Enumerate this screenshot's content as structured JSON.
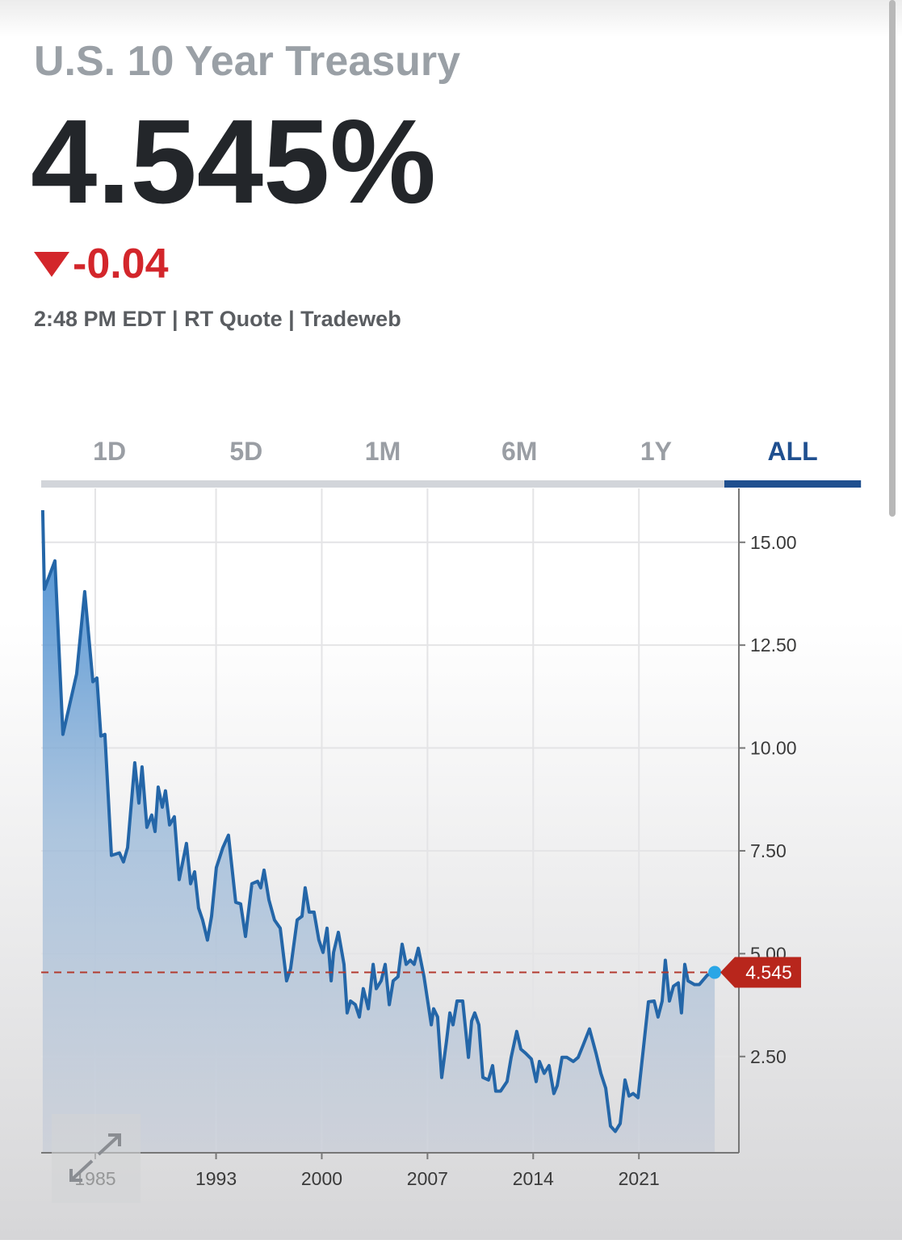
{
  "header": {
    "title": "U.S. 10 Year Treasury",
    "price": "4.545%",
    "change": "-0.04",
    "meta": "2:48 PM EDT | RT Quote | Tradeweb"
  },
  "tabs": [
    "1D",
    "5D",
    "1M",
    "6M",
    "1Y",
    "ALL"
  ],
  "active_tab": 5,
  "chart_data": {
    "type": "area",
    "color": "#2466a8",
    "x": [
      1981.52,
      1981.63,
      1982.33,
      1982.86,
      1983.77,
      1984.3,
      1984.84,
      1985.11,
      1985.37,
      1985.64,
      1986.07,
      1986.6,
      1986.87,
      1987.14,
      1987.62,
      1987.89,
      1988.1,
      1988.42,
      1988.74,
      1988.96,
      1989.17,
      1989.44,
      1989.65,
      1989.92,
      1990.24,
      1990.56,
      1991.04,
      1991.31,
      1991.58,
      1991.84,
      1992.11,
      1992.43,
      1992.7,
      1993.02,
      1993.45,
      1993.82,
      1994.3,
      1994.63,
      1994.95,
      1995.37,
      1995.75,
      1995.96,
      1996.18,
      1996.5,
      1996.87,
      1997.25,
      1997.67,
      1997.94,
      1998.37,
      1998.69,
      1998.9,
      1999.17,
      1999.49,
      1999.81,
      2000.08,
      2000.35,
      2000.62,
      2000.78,
      2001.1,
      2001.47,
      2001.68,
      2001.9,
      2002.22,
      2002.49,
      2002.75,
      2003.08,
      2003.4,
      2003.61,
      2003.93,
      2004.2,
      2004.47,
      2004.73,
      2005.05,
      2005.32,
      2005.59,
      2005.86,
      2006.12,
      2006.39,
      2006.77,
      2007.25,
      2007.41,
      2007.67,
      2007.94,
      2008.26,
      2008.48,
      2008.69,
      2008.96,
      2009.33,
      2009.71,
      2009.92,
      2010.13,
      2010.4,
      2010.67,
      2011.04,
      2011.31,
      2011.52,
      2011.84,
      2012.27,
      2012.54,
      2012.91,
      2013.18,
      2013.5,
      2013.88,
      2014.2,
      2014.41,
      2014.73,
      2015.05,
      2015.37,
      2015.59,
      2015.91,
      2016.23,
      2016.66,
      2016.98,
      2017.3,
      2017.73,
      2018.16,
      2018.48,
      2018.8,
      2019.12,
      2019.44,
      2019.76,
      2020.08,
      2020.35,
      2020.62,
      2020.94,
      2021.26,
      2021.63,
      2022.01,
      2022.27,
      2022.54,
      2022.75,
      2023.02,
      2023.29,
      2023.61,
      2023.82,
      2024.04,
      2024.25,
      2024.68,
      2025.0,
      2025.53,
      2026.02
    ],
    "values": [
      15.78,
      13.86,
      14.55,
      10.33,
      11.8,
      13.8,
      11.61,
      11.7,
      10.29,
      10.33,
      7.39,
      7.45,
      7.23,
      7.58,
      9.64,
      8.66,
      9.54,
      8.07,
      8.37,
      7.97,
      9.05,
      8.56,
      8.96,
      8.13,
      8.33,
      6.8,
      7.68,
      6.7,
      6.99,
      6.11,
      5.82,
      5.33,
      5.91,
      7.09,
      7.58,
      7.88,
      6.25,
      6.21,
      5.42,
      6.7,
      6.76,
      6.6,
      7.03,
      6.31,
      5.82,
      5.62,
      4.34,
      4.64,
      5.82,
      5.91,
      6.6,
      6.01,
      6.01,
      5.33,
      5.03,
      5.62,
      4.34,
      5.03,
      5.52,
      4.74,
      3.56,
      3.85,
      3.76,
      3.46,
      4.15,
      3.66,
      4.74,
      4.15,
      4.34,
      4.74,
      3.76,
      4.34,
      4.44,
      5.23,
      4.74,
      4.84,
      4.74,
      5.13,
      4.44,
      3.27,
      3.66,
      3.46,
      1.99,
      2.87,
      3.56,
      3.27,
      3.85,
      3.85,
      2.48,
      3.36,
      3.56,
      3.27,
      1.99,
      1.93,
      2.28,
      1.66,
      1.66,
      1.89,
      2.48,
      3.11,
      2.68,
      2.58,
      2.44,
      1.89,
      2.38,
      2.09,
      2.28,
      1.6,
      1.79,
      2.48,
      2.48,
      2.38,
      2.48,
      2.77,
      3.17,
      2.58,
      2.09,
      1.73,
      0.81,
      0.68,
      0.87,
      1.93,
      1.54,
      1.6,
      1.5,
      2.58,
      3.83,
      3.85,
      3.46,
      3.85,
      4.84,
      3.85,
      4.21,
      4.29,
      3.56,
      4.74,
      4.34,
      4.25,
      4.25,
      4.48,
      4.545
    ],
    "current_value": 4.545,
    "xlim": [
      1981.42,
      2027.62
    ],
    "xticks": [
      1985,
      1993,
      2000,
      2007,
      2014,
      2021
    ],
    "ylim": [
      0.16,
      16.31
    ],
    "yticks": [
      {
        "value": 2.5,
        "label": "2.50"
      },
      {
        "value": 5,
        "label": "5.00"
      },
      {
        "value": 7.5,
        "label": "7.50"
      },
      {
        "value": 10,
        "label": "10.00"
      },
      {
        "value": 12.5,
        "label": "12.50"
      },
      {
        "value": 15,
        "label": "15.00"
      }
    ],
    "grid": true
  }
}
